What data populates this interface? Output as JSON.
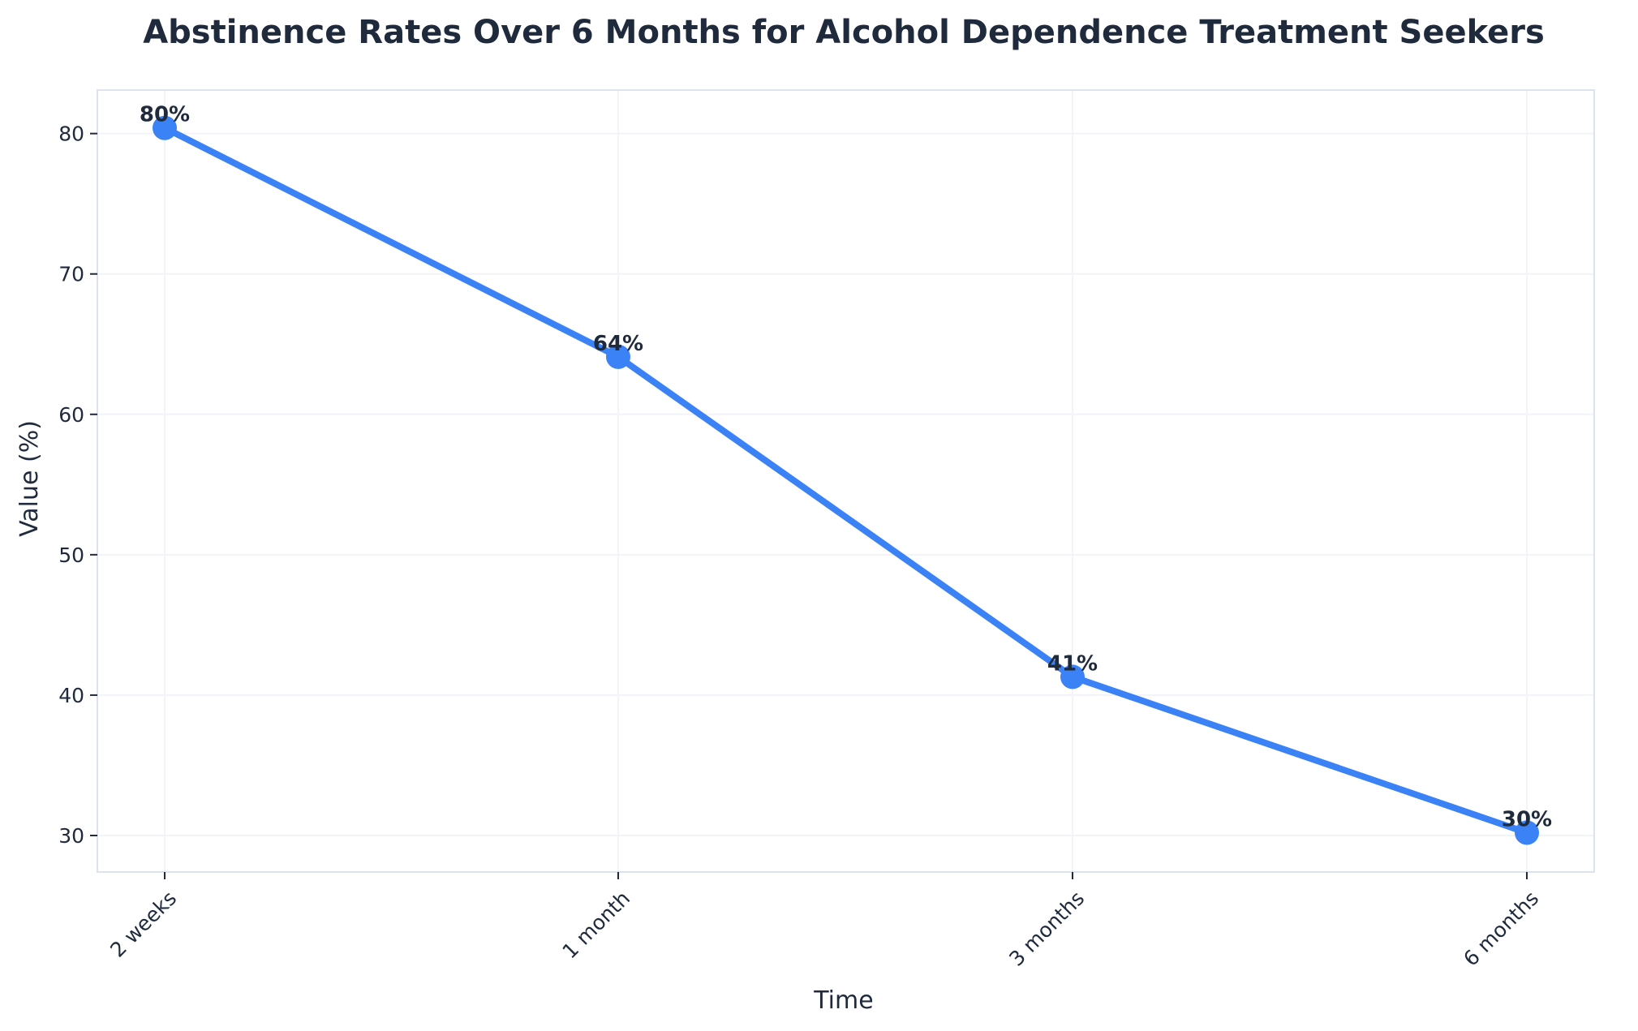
{
  "chart_data": {
    "type": "line",
    "title": "Abstinence Rates Over 6 Months for Alcohol Dependence Treatment Seekers",
    "xlabel": "Time",
    "ylabel": "Value (%)",
    "categories": [
      "2 weeks",
      "1 month",
      "3 months",
      "6 months"
    ],
    "series": [
      {
        "values": [
          80.4,
          64.1,
          41.3,
          30.2
        ],
        "labels": [
          "80%",
          "64%",
          "41%",
          "30%"
        ],
        "color": "#3b82f6"
      }
    ],
    "yticks": [
      30,
      40,
      50,
      60,
      70,
      80
    ],
    "ylim": [
      27.4,
      83.1
    ],
    "grid": true,
    "colors": {
      "line": "#3b82f6",
      "text": "#1f2a3c",
      "frame": "#dde3ec",
      "grid": "#f1f4f8"
    }
  }
}
